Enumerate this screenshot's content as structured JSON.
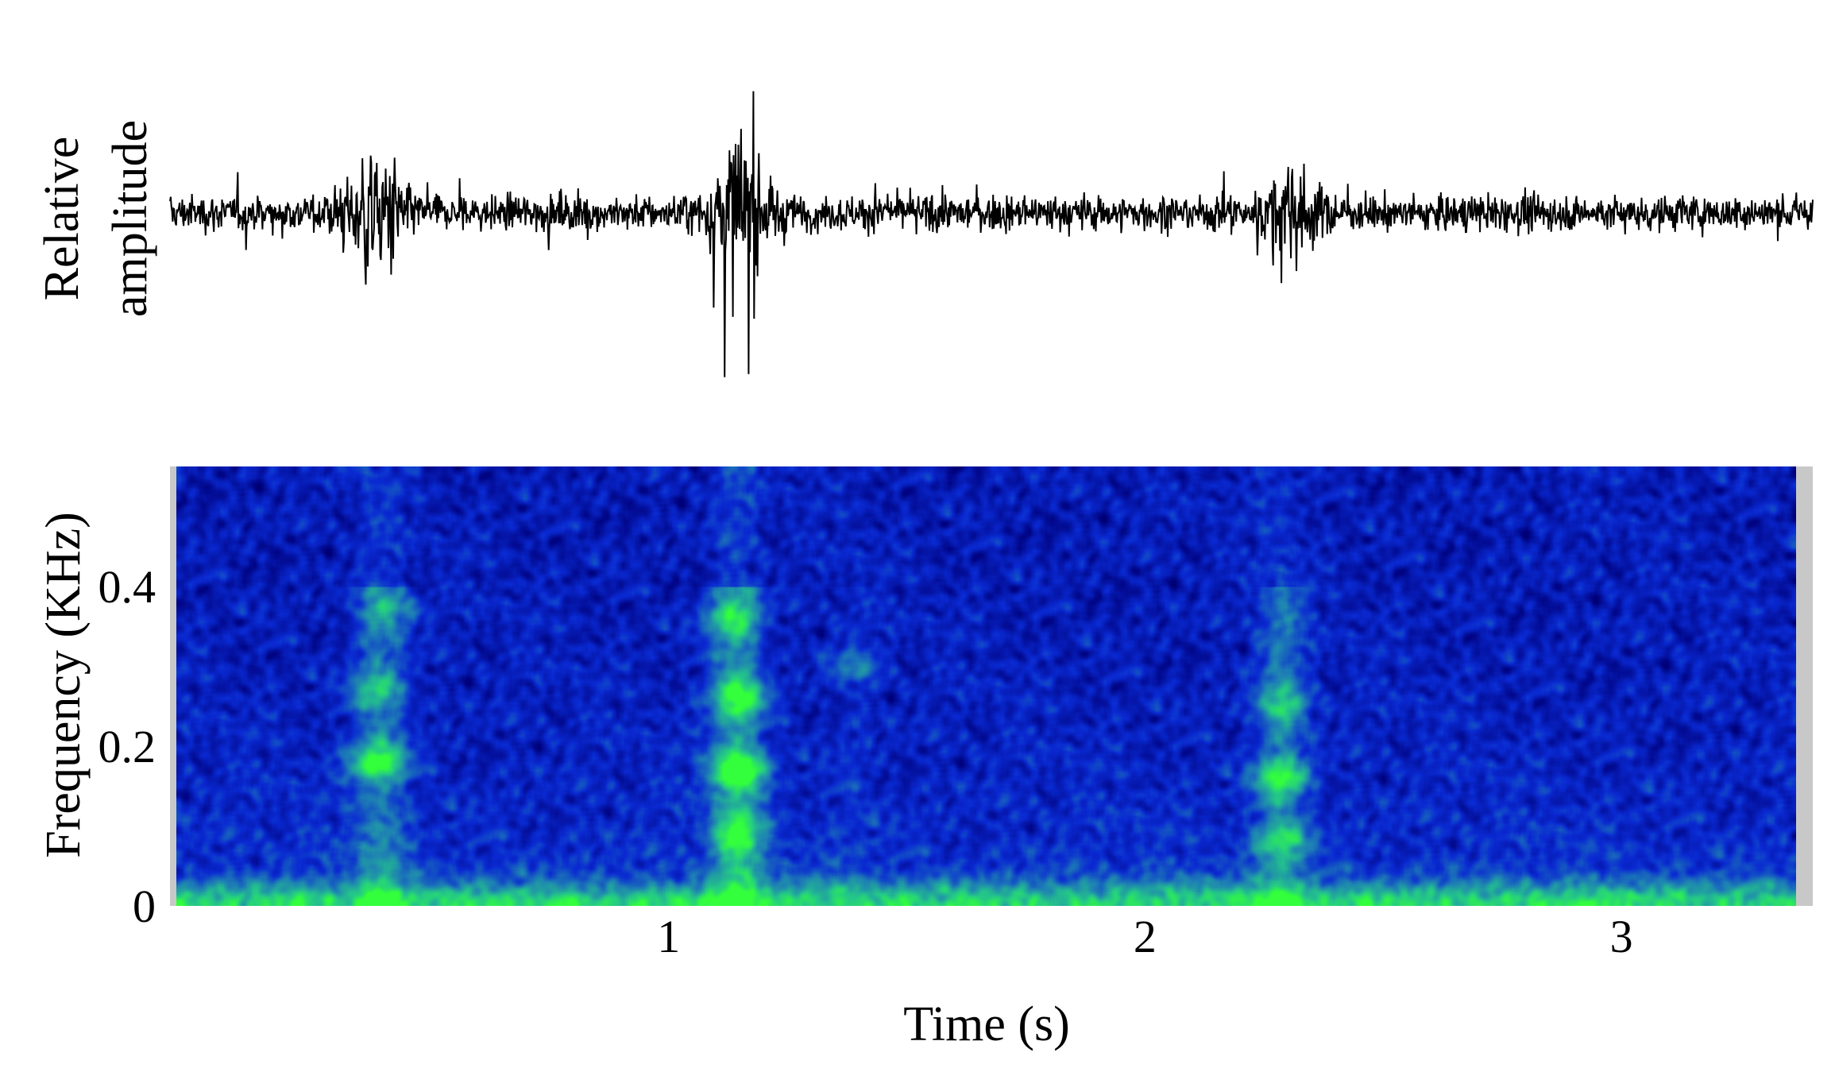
{
  "chart_data": [
    {
      "type": "line",
      "panel": "waveform",
      "ylabel_line1": "Relative",
      "ylabel_line2": "amplitude",
      "xlim": [
        0,
        3.4
      ],
      "bursts": [
        {
          "t": 0.42,
          "amplitude": 1.0
        },
        {
          "t": 1.18,
          "amplitude": 1.15
        },
        {
          "t": 2.32,
          "amplitude": 0.55
        }
      ],
      "baseline_noise": 0.28,
      "line_color": "#000000"
    },
    {
      "type": "heatmap",
      "panel": "spectrogram",
      "title": "",
      "xlabel": "Time (s)",
      "ylabel": "Frequency (KHz)",
      "xlim": [
        0,
        3.4
      ],
      "ylim": [
        0,
        0.55
      ],
      "x_ticks": [
        {
          "value": 1,
          "label": "1"
        },
        {
          "value": 2,
          "label": "2"
        },
        {
          "value": 3,
          "label": "3"
        }
      ],
      "y_ticks": [
        {
          "value": 0,
          "label": "0"
        },
        {
          "value": 0.2,
          "label": "0.2"
        },
        {
          "value": 0.4,
          "label": "0.4"
        }
      ],
      "hotspots": [
        {
          "t": 0.42,
          "f": 0.18,
          "intensity": 0.95
        },
        {
          "t": 0.42,
          "f": 0.27,
          "intensity": 0.55
        },
        {
          "t": 0.45,
          "f": 0.37,
          "intensity": 0.45
        },
        {
          "t": 1.18,
          "f": 0.17,
          "intensity": 1.0
        },
        {
          "t": 1.18,
          "f": 0.26,
          "intensity": 0.75
        },
        {
          "t": 1.16,
          "f": 0.36,
          "intensity": 0.55
        },
        {
          "t": 1.18,
          "f": 0.09,
          "intensity": 0.6
        },
        {
          "t": 2.32,
          "f": 0.16,
          "intensity": 0.8
        },
        {
          "t": 2.32,
          "f": 0.25,
          "intensity": 0.55
        },
        {
          "t": 2.32,
          "f": 0.08,
          "intensity": 0.55
        },
        {
          "t": 1.42,
          "f": 0.3,
          "intensity": 0.35
        }
      ],
      "colormap": [
        "#000014",
        "#00007a",
        "#0a2ad2",
        "#1e80b4",
        "#24c888",
        "#33ff3c"
      ],
      "side_margin_color": "#c8c8c8"
    }
  ]
}
